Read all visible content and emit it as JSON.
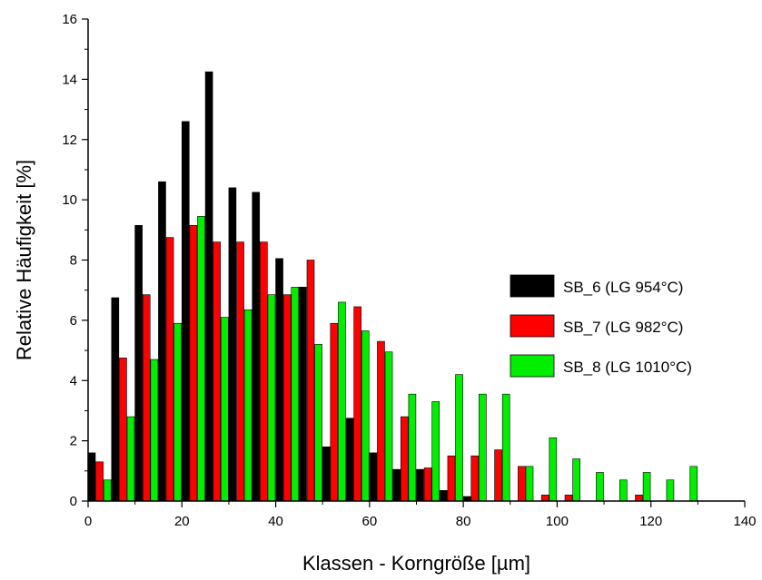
{
  "chart_data": {
    "type": "bar",
    "xlabel": "Klassen - Korngröße [µm]",
    "ylabel": "Relative Häufigkeit [%]",
    "xlim": [
      0,
      140
    ],
    "ylim": [
      0,
      16
    ],
    "x_ticks": [
      "0",
      "20",
      "40",
      "60",
      "80",
      "100",
      "120",
      "140"
    ],
    "y_ticks": [
      "0",
      "2",
      "4",
      "6",
      "8",
      "10",
      "12",
      "14",
      "16"
    ],
    "legend_placement": "right",
    "categories": [
      0,
      5,
      10,
      15,
      20,
      25,
      30,
      35,
      40,
      45,
      50,
      55,
      60,
      65,
      70,
      75,
      80,
      85,
      90,
      95,
      100,
      105,
      110,
      115,
      120,
      125,
      130
    ],
    "series": [
      {
        "name": "SB_6 (LG 954°C)",
        "color": "#000000",
        "values": [
          1.6,
          6.75,
          9.15,
          10.6,
          12.6,
          14.25,
          10.4,
          10.25,
          8.05,
          7.1,
          1.8,
          2.75,
          1.6,
          1.05,
          1.05,
          0.35,
          0.15,
          0,
          0,
          0,
          0,
          0,
          0,
          0,
          0,
          0,
          0
        ]
      },
      {
        "name": "SB_7 (LG 982°C)",
        "color": "#ff0000",
        "values": [
          1.3,
          4.75,
          6.85,
          8.75,
          9.15,
          8.6,
          8.6,
          8.6,
          6.85,
          8.0,
          5.9,
          6.45,
          5.3,
          2.8,
          1.1,
          1.5,
          1.5,
          1.7,
          1.15,
          0.2,
          0.2,
          0,
          0,
          0.2,
          0,
          0,
          0
        ]
      },
      {
        "name": "SB_8 (LG 1010°C)",
        "color": "#00ee00",
        "values": [
          0.7,
          2.8,
          4.7,
          5.9,
          9.45,
          6.1,
          6.35,
          6.85,
          7.1,
          5.2,
          6.6,
          5.65,
          4.95,
          3.55,
          3.3,
          4.2,
          3.55,
          3.55,
          1.15,
          2.1,
          1.4,
          0.95,
          0.7,
          0.95,
          0.7,
          1.15,
          0
        ]
      }
    ]
  }
}
